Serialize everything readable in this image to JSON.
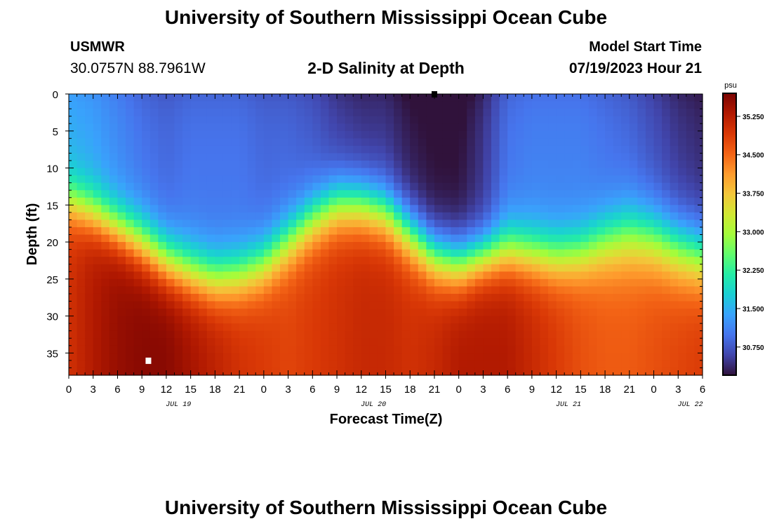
{
  "header": {
    "title": "University of Southern Mississippi Ocean Cube",
    "station_name": "USMWR",
    "station_coords": "30.0757N  88.7961W",
    "plot_title": "2-D Salinity at Depth",
    "model_label": "Model Start Time",
    "model_time": "07/19/2023 Hour 21"
  },
  "footer": {
    "title": "University of Southern Mississippi Ocean Cube"
  },
  "chart_data": {
    "type": "heatmap",
    "title": "2-D Salinity at Depth",
    "xlabel": "Forecast Time(Z)",
    "ylabel": "Depth (ft)",
    "x_tick_labels": [
      "0",
      "3",
      "6",
      "9",
      "12",
      "15",
      "18",
      "21",
      "0",
      "3",
      "6",
      "9",
      "12",
      "15",
      "18",
      "21",
      "0",
      "3",
      "6",
      "9",
      "12",
      "15",
      "18",
      "21",
      "0",
      "3",
      "6"
    ],
    "x_date_labels": [
      {
        "label": "JUL 19",
        "after_tick": 4
      },
      {
        "label": "JUL 20",
        "after_tick": 12
      },
      {
        "label": "JUL 21",
        "after_tick": 20
      },
      {
        "label": "JUL 22",
        "after_tick": 25
      }
    ],
    "xlim_hours": [
      0,
      78
    ],
    "y_ticks": [
      0,
      5,
      10,
      15,
      20,
      25,
      30,
      35
    ],
    "ylim": [
      0,
      38
    ],
    "y_inverted": true,
    "units": "psu",
    "colorbar_ticks": [
      "35.250",
      "34.500",
      "33.750",
      "33.000",
      "32.250",
      "31.500",
      "30.750"
    ],
    "colorbar_range": [
      30.2,
      35.7
    ],
    "colormap": [
      "#30123b",
      "#4145ab",
      "#4675ed",
      "#39a2fc",
      "#1bcfd4",
      "#24eca6",
      "#61fc6c",
      "#a4fc3b",
      "#d1e834",
      "#f3c63a",
      "#fe9b2d",
      "#f36315",
      "#d93806",
      "#b11901",
      "#7a0402"
    ],
    "salinity_profiles": [
      {
        "hour": 0,
        "surface": 31.5,
        "halocline_ft": 14.5,
        "thickness_ft": 4.5,
        "bottom": 35.0
      },
      {
        "hour": 3,
        "surface": 31.4,
        "halocline_ft": 16.0,
        "thickness_ft": 4.5,
        "bottom": 35.3
      },
      {
        "hour": 6,
        "surface": 31.2,
        "halocline_ft": 18.0,
        "thickness_ft": 4.5,
        "bottom": 35.5
      },
      {
        "hour": 9,
        "surface": 31.0,
        "halocline_ft": 20.0,
        "thickness_ft": 5.0,
        "bottom": 35.6
      },
      {
        "hour": 12,
        "surface": 30.9,
        "halocline_ft": 22.5,
        "thickness_ft": 5.0,
        "bottom": 35.6
      },
      {
        "hour": 15,
        "surface": 31.0,
        "halocline_ft": 24.0,
        "thickness_ft": 5.0,
        "bottom": 35.4
      },
      {
        "hour": 18,
        "surface": 31.0,
        "halocline_ft": 25.0,
        "thickness_ft": 5.0,
        "bottom": 35.2
      },
      {
        "hour": 21,
        "surface": 31.0,
        "halocline_ft": 24.5,
        "thickness_ft": 5.0,
        "bottom": 35.0
      },
      {
        "hour": 24,
        "surface": 30.9,
        "halocline_ft": 23.0,
        "thickness_ft": 5.0,
        "bottom": 34.9
      },
      {
        "hour": 27,
        "surface": 30.9,
        "halocline_ft": 20.0,
        "thickness_ft": 5.0,
        "bottom": 34.8
      },
      {
        "hour": 30,
        "surface": 30.8,
        "halocline_ft": 17.0,
        "thickness_ft": 5.0,
        "bottom": 34.9
      },
      {
        "hour": 33,
        "surface": 30.6,
        "halocline_ft": 15.0,
        "thickness_ft": 5.0,
        "bottom": 35.0
      },
      {
        "hour": 36,
        "surface": 30.5,
        "halocline_ft": 15.0,
        "thickness_ft": 5.0,
        "bottom": 35.1
      },
      {
        "hour": 39,
        "surface": 30.5,
        "halocline_ft": 16.0,
        "thickness_ft": 5.0,
        "bottom": 35.1
      },
      {
        "hour": 42,
        "surface": 30.3,
        "halocline_ft": 19.0,
        "thickness_ft": 5.0,
        "bottom": 35.0
      },
      {
        "hour": 45,
        "surface": 30.2,
        "halocline_ft": 22.0,
        "thickness_ft": 5.0,
        "bottom": 35.1
      },
      {
        "hour": 48,
        "surface": 30.2,
        "halocline_ft": 23.0,
        "thickness_ft": 5.0,
        "bottom": 35.3
      },
      {
        "hour": 51,
        "surface": 30.5,
        "halocline_ft": 22.0,
        "thickness_ft": 4.5,
        "bottom": 35.3
      },
      {
        "hour": 54,
        "surface": 31.0,
        "halocline_ft": 21.0,
        "thickness_ft": 5.0,
        "bottom": 35.3
      },
      {
        "hour": 57,
        "surface": 31.1,
        "halocline_ft": 21.5,
        "thickness_ft": 5.0,
        "bottom": 35.1
      },
      {
        "hour": 60,
        "surface": 31.1,
        "halocline_ft": 22.0,
        "thickness_ft": 5.0,
        "bottom": 34.9
      },
      {
        "hour": 63,
        "surface": 31.1,
        "halocline_ft": 21.5,
        "thickness_ft": 5.0,
        "bottom": 34.7
      },
      {
        "hour": 66,
        "surface": 31.0,
        "halocline_ft": 20.0,
        "thickness_ft": 5.5,
        "bottom": 34.6
      },
      {
        "hour": 69,
        "surface": 30.9,
        "halocline_ft": 19.0,
        "thickness_ft": 6.0,
        "bottom": 34.6
      },
      {
        "hour": 72,
        "surface": 30.7,
        "halocline_ft": 19.5,
        "thickness_ft": 6.0,
        "bottom": 34.7
      },
      {
        "hour": 75,
        "surface": 30.5,
        "halocline_ft": 21.0,
        "thickness_ft": 6.0,
        "bottom": 34.8
      },
      {
        "hour": 78,
        "surface": 30.4,
        "halocline_ft": 22.0,
        "thickness_ft": 6.0,
        "bottom": 34.9
      }
    ],
    "markers": [
      {
        "name": "white-marker",
        "hour": 9.8,
        "depth_ft": 36.0,
        "color": "#ffffff"
      },
      {
        "name": "black-marker",
        "hour": 45.0,
        "depth_ft": 0.0,
        "color": "#000000"
      }
    ]
  }
}
